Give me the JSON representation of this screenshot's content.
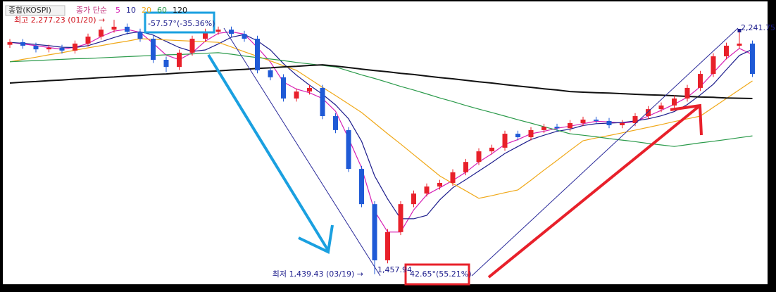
{
  "chart_data": {
    "type": "candlestick",
    "title": "종합(KOSPI)",
    "ma_label": "종가 단순",
    "up_color": "#e8202a",
    "down_color": "#1f5ad6",
    "ylim": [
      1420,
      2324
    ],
    "open": [
      2195,
      2203.5,
      2192,
      2180,
      2185,
      2176,
      2199,
      2222,
      2245,
      2254.5,
      2238,
      2215,
      2145.5,
      2122,
      2169,
      2215,
      2238,
      2245,
      2231,
      2215,
      2111,
      2088,
      2018,
      2041,
      2053,
      1960,
      1914,
      1786,
      1670,
      1485,
      1578,
      1670,
      1705,
      1728,
      1740,
      1775,
      1809,
      1844,
      1856,
      1902,
      1890.5,
      1914,
      1925,
      1920,
      1937,
      1948.5,
      1944,
      1930,
      1937,
      1960,
      1983,
      1995,
      2018,
      2053,
      2099,
      2157,
      2192,
      2199
    ],
    "high": [
      2214,
      2214,
      2202,
      2195,
      2195,
      2209,
      2232,
      2255,
      2277.23,
      2265,
      2248,
      2225,
      2156,
      2179,
      2225,
      2248,
      2255,
      2255,
      2241,
      2225,
      2121,
      2098,
      2051,
      2063,
      2063,
      1970,
      1924,
      1796,
      1680,
      1588,
      1680,
      1715,
      1738,
      1750,
      1785,
      1819,
      1854,
      1866,
      1912,
      1912,
      1924,
      1935,
      1935,
      1947,
      1958,
      1958,
      1954,
      1947,
      1970,
      1993,
      2005,
      2028,
      2063,
      2109,
      2167,
      2202,
      2241.75,
      2209
    ],
    "low": [
      2185,
      2182,
      2170,
      2170,
      2166,
      2166,
      2189,
      2212,
      2235,
      2228,
      2205,
      2135,
      2105,
      2112,
      2159,
      2205,
      2228,
      2221,
      2205,
      2101,
      2078,
      2008,
      2008,
      2031,
      1950,
      1904,
      1776,
      1660,
      1439.43,
      1475,
      1568,
      1660,
      1695,
      1718,
      1730,
      1765,
      1799,
      1834,
      1846,
      1880,
      1880,
      1904,
      1910,
      1910,
      1927,
      1934,
      1920,
      1920,
      1927,
      1950,
      1973,
      1985,
      2008,
      2043,
      2089,
      2147,
      2182,
      2089
    ],
    "close": [
      2203.5,
      2192,
      2180,
      2185,
      2176,
      2199,
      2222,
      2245,
      2254.5,
      2238,
      2215,
      2145.5,
      2122,
      2169,
      2215,
      2238,
      2245,
      2231,
      2215,
      2111,
      2088,
      2018,
      2041,
      2053,
      1960,
      1914,
      1786,
      1670,
      1485,
      1578,
      1670,
      1705,
      1728,
      1740,
      1775,
      1809,
      1844,
      1856,
      1902,
      1890.5,
      1914,
      1925,
      1920,
      1937,
      1948.5,
      1944,
      1930,
      1937,
      1960,
      1983,
      1995,
      2018,
      2053,
      2099,
      2157,
      2192,
      2199,
      2099
    ],
    "series": [
      {
        "name": "5",
        "color": "#d61fb4",
        "values": [
          2203,
          2198,
          2192,
          2186,
          2180,
          2187,
          2199,
          2222,
          2240,
          2246,
          2236,
          2200,
          2161,
          2146,
          2169,
          2207,
          2233,
          2238,
          2230,
          2186,
          2138,
          2072,
          2049,
          2037,
          2018,
          1976,
          1887,
          1790,
          1647,
          1578,
          1578,
          1651,
          1701,
          1724,
          1748,
          1775,
          1809,
          1836,
          1867,
          1883,
          1902,
          1910,
          1920,
          1927,
          1935,
          1943,
          1941,
          1937,
          1942,
          1960,
          1979,
          1999,
          2022,
          2057,
          2103,
          2149,
          2183,
          2163
        ]
      },
      {
        "name": "10",
        "color": "#1c1c8c",
        "values": [
          2203,
          2200,
          2196,
          2192,
          2187,
          2186,
          2192,
          2205,
          2219,
          2232,
          2238,
          2227,
          2206,
          2186,
          2173,
          2178,
          2198,
          2220,
          2229,
          2208,
          2178,
          2133,
          2095,
          2062,
          2032,
          1997,
          1951,
          1877,
          1763,
          1687,
          1622,
          1622,
          1633,
          1684,
          1724,
          1751,
          1779,
          1807,
          1837,
          1860,
          1883,
          1897,
          1910,
          1917,
          1929,
          1935,
          1937,
          1939,
          1944,
          1951,
          1961,
          1975,
          1998,
          2030,
          2065,
          2113,
          2160,
          2180
        ]
      },
      {
        "name": "20",
        "color": "#f0a818",
        "values": [
          2139,
          2147,
          2154,
          2162,
          2169,
          2177,
          2185,
          2192,
          2200,
          2207,
          2215,
          2213,
          2211,
          2209,
          2207,
          2205,
          2203,
          2188,
          2172,
          2157,
          2142,
          2126,
          2111,
          2083,
          2055,
          2028,
          2000,
          1972,
          1937,
          1902,
          1868,
          1833,
          1798,
          1763,
          1738,
          1714,
          1689,
          1698,
          1708,
          1717,
          1749,
          1782,
          1814,
          1847,
          1879,
          1888,
          1896,
          1905,
          1914,
          1923,
          1932,
          1942,
          1951,
          1960,
          1989,
          2018,
          2047,
          2076
        ]
      },
      {
        "name": "60",
        "color": "#2a9a4a",
        "values": [
          2139,
          2141,
          2143,
          2145,
          2147,
          2149,
          2150,
          2152,
          2154,
          2156,
          2158,
          2160,
          2162,
          2163,
          2165,
          2167,
          2169,
          2164,
          2158,
          2153,
          2148,
          2143,
          2137,
          2132,
          2127,
          2122,
          2109,
          2096,
          2084,
          2071,
          2058,
          2046,
          2033,
          2020,
          2008,
          1995,
          1983,
          1972,
          1960,
          1948,
          1937,
          1925,
          1914,
          1902,
          1897,
          1892,
          1886,
          1881,
          1876,
          1870,
          1865,
          1860,
          1866,
          1872,
          1877,
          1883,
          1889,
          1895
        ]
      },
      {
        "name": "120",
        "color": "#111111",
        "values": [
          2069,
          2072,
          2074,
          2077,
          2079,
          2082,
          2084,
          2087,
          2089,
          2092,
          2094,
          2097,
          2099,
          2102,
          2104,
          2107,
          2109,
          2112,
          2114,
          2117,
          2119,
          2122,
          2124,
          2127,
          2129,
          2125,
          2120,
          2115,
          2110,
          2106,
          2101,
          2097,
          2092,
          2087,
          2083,
          2078,
          2073,
          2069,
          2064,
          2059,
          2055,
          2050,
          2046,
          2041,
          2039,
          2037,
          2036,
          2034,
          2032,
          2030,
          2029,
          2027,
          2025,
          2023,
          2022,
          2020,
          2019,
          2018
        ]
      }
    ],
    "annotations": [
      {
        "text": "최고 2,277.23 (01/20) →",
        "color": "#d0101a"
      },
      {
        "text": "-57.57°(-35.36%)",
        "color": "#1c1c8c"
      },
      {
        "text": "2,241.75",
        "color": "#1c1c8c"
      },
      {
        "text": "최저 1,439.43 (03/19) →",
        "color": "#1c1c8c"
      },
      {
        "text": "1,457.94",
        "color": "#1c1c8c"
      },
      {
        "text": "42.65°(55.21%)",
        "color": "#1c1c8c"
      }
    ]
  }
}
